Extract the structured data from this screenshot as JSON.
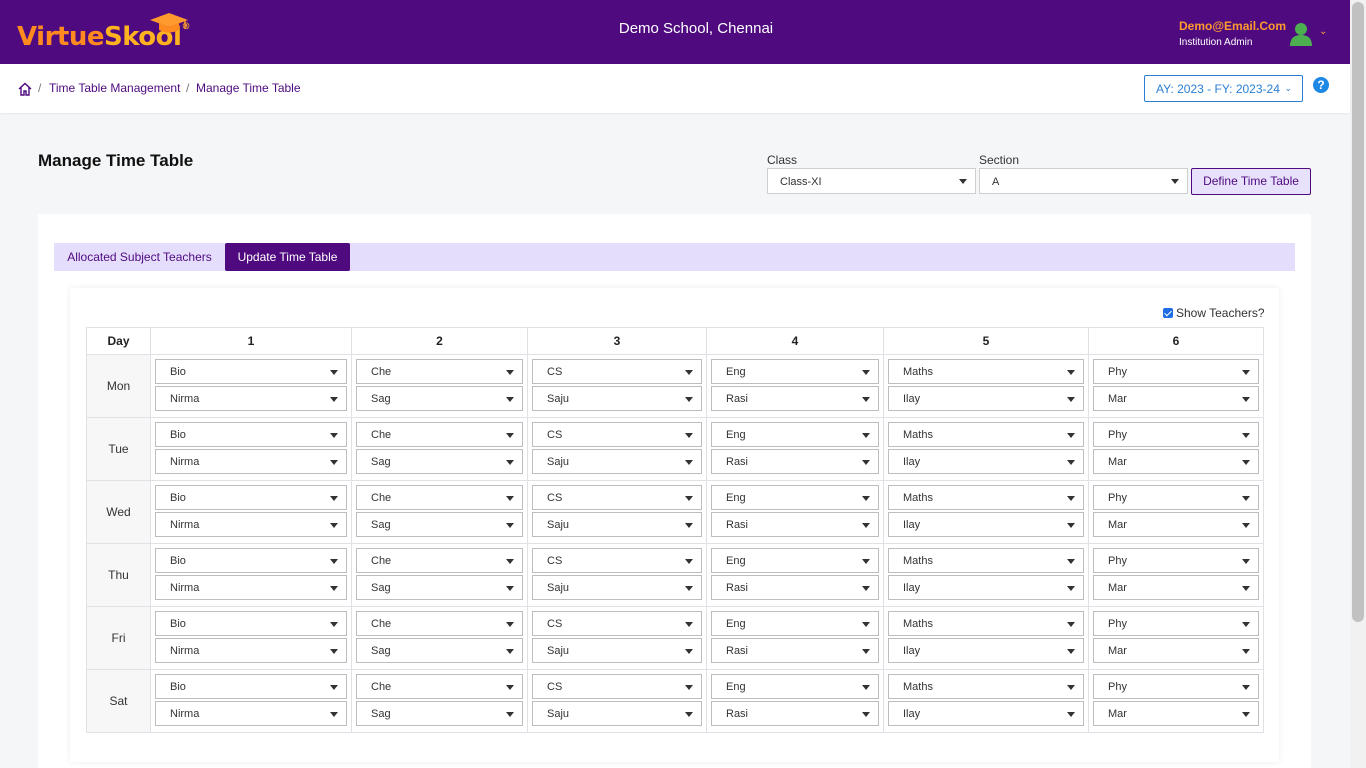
{
  "header": {
    "logo_text_1": "Virtue",
    "logo_text_2": "Skool",
    "logo_reg": "®",
    "school_name": "Demo School, Chennai",
    "user_email": "Demo@Email.Com",
    "user_role": "Institution Admin",
    "brand_color": "#4f0a7f",
    "accent_color": "#ff9a2e"
  },
  "breadcrumb": {
    "items": [
      "Time Table Management",
      "Manage Time Table"
    ],
    "separator": "/",
    "academic_year": "AY: 2023 - FY: 2023-24",
    "help": "?"
  },
  "page": {
    "title": "Manage Time Table",
    "class_label": "Class",
    "class_value": "Class-XI",
    "section_label": "Section",
    "section_value": "A",
    "define_button": "Define Time Table"
  },
  "tabs": {
    "allocated": "Allocated Subject Teachers",
    "update": "Update Time Table",
    "active": "Update Time Table"
  },
  "timetable": {
    "show_teachers_label": "Show Teachers?",
    "show_teachers_checked": true,
    "day_header": "Day",
    "periods": [
      "1",
      "2",
      "3",
      "4",
      "5",
      "6"
    ],
    "subjects": [
      "Bio",
      "Che",
      "CS",
      "Eng",
      "Maths",
      "Phy"
    ],
    "teachers": [
      "Nirma",
      "Sag",
      "Saju",
      "Rasi",
      "Ilay",
      "Mar"
    ],
    "days": [
      "Mon",
      "Tue",
      "Wed",
      "Thu",
      "Fri",
      "Sat"
    ]
  }
}
